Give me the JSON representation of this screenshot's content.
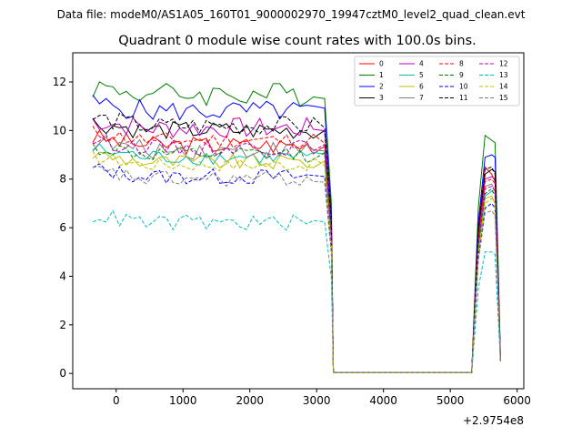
{
  "chart_data": {
    "type": "line",
    "suptitle": "Data file: modeM0/AS1A05_160T01_9000002970_19947cztM0_level2_quad_clean.evt",
    "title": "Quadrant 0 module wise count rates with 100.0s bins.",
    "xlabel": "",
    "ylabel": "",
    "x_offset_label": "+2.9754e8",
    "xlim": [
      -650,
      6100
    ],
    "ylim": [
      -0.63,
      13.2
    ],
    "x_ticks": [
      0,
      1000,
      2000,
      3000,
      4000,
      5000,
      6000
    ],
    "x_tick_labels": [
      "0",
      "1000",
      "2000",
      "3000",
      "4000",
      "5000",
      "6000"
    ],
    "y_ticks": [
      0,
      2,
      4,
      6,
      8,
      10,
      12
    ],
    "y_tick_labels": [
      "0",
      "2",
      "4",
      "6",
      "8",
      "10",
      "12"
    ],
    "legend_position": "top-right",
    "grid": false,
    "gap_range": [
      3220,
      5320
    ],
    "series": [
      {
        "name": "0",
        "color": "#ff0000",
        "dash": "solid",
        "base": 9.4,
        "amp": 0.35,
        "tail": [
          8.5,
          8.2,
          7.9,
          0.6
        ],
        "drop": 5.8
      },
      {
        "name": "1",
        "color": "#008000",
        "dash": "solid",
        "base": 11.5,
        "amp": 0.45,
        "tail": [
          9.8,
          9.6,
          9.5,
          0.8
        ],
        "drop": 7.0
      },
      {
        "name": "2",
        "color": "#0000ff",
        "dash": "solid",
        "base": 10.8,
        "amp": 0.4,
        "tail": [
          8.9,
          9.0,
          8.9,
          0.7
        ],
        "drop": 6.5
      },
      {
        "name": "3",
        "color": "#000000",
        "dash": "solid",
        "base": 10.0,
        "amp": 0.35,
        "tail": [
          8.2,
          8.4,
          8.3,
          0.6
        ],
        "drop": 6.0
      },
      {
        "name": "4",
        "color": "#bf00bf",
        "dash": "solid",
        "base": 10.1,
        "amp": 0.4,
        "tail": [
          8.0,
          8.1,
          8.0,
          0.6
        ],
        "drop": 6.1
      },
      {
        "name": "5",
        "color": "#00bfbf",
        "dash": "solid",
        "base": 8.9,
        "amp": 0.3,
        "tail": [
          7.3,
          7.5,
          7.4,
          0.5
        ],
        "drop": 5.4
      },
      {
        "name": "6",
        "color": "#bfbf00",
        "dash": "solid",
        "base": 8.7,
        "amp": 0.3,
        "tail": [
          7.2,
          7.3,
          7.0,
          0.5
        ],
        "drop": 5.3
      },
      {
        "name": "7",
        "color": "#808080",
        "dash": "solid",
        "base": 9.2,
        "amp": 0.35,
        "tail": [
          7.7,
          7.8,
          7.5,
          0.6
        ],
        "drop": 5.6
      },
      {
        "name": "8",
        "color": "#ff0000",
        "dash": "dashed",
        "base": 9.6,
        "amp": 0.3,
        "tail": [
          7.9,
          8.0,
          7.8,
          0.6
        ],
        "drop": 5.9
      },
      {
        "name": "9",
        "color": "#008000",
        "dash": "dashed",
        "base": 9.0,
        "amp": 0.3,
        "tail": [
          7.4,
          7.6,
          7.3,
          0.5
        ],
        "drop": 5.5
      },
      {
        "name": "10",
        "color": "#0000ff",
        "dash": "dashed",
        "base": 8.1,
        "amp": 0.3,
        "tail": [
          6.8,
          7.0,
          6.8,
          0.5
        ],
        "drop": 5.0
      },
      {
        "name": "11",
        "color": "#000000",
        "dash": "dashed",
        "base": 10.2,
        "amp": 0.35,
        "tail": [
          8.4,
          8.5,
          8.2,
          0.6
        ],
        "drop": 6.2
      },
      {
        "name": "12",
        "color": "#bf00bf",
        "dash": "dashed",
        "base": 9.3,
        "amp": 0.3,
        "tail": [
          7.6,
          7.7,
          7.5,
          0.6
        ],
        "drop": 5.7
      },
      {
        "name": "13",
        "color": "#00bfbf",
        "dash": "dashed",
        "base": 6.2,
        "amp": 0.3,
        "tail": [
          5.0,
          5.0,
          4.9,
          0.5
        ],
        "drop": 3.9
      },
      {
        "name": "14",
        "color": "#bfbf00",
        "dash": "dashed",
        "base": 8.6,
        "amp": 0.25,
        "tail": [
          7.0,
          7.2,
          7.0,
          0.5
        ],
        "drop": 5.2
      },
      {
        "name": "15",
        "color": "#808080",
        "dash": "dashed",
        "base": 8.0,
        "amp": 0.3,
        "tail": [
          6.6,
          6.7,
          6.5,
          0.5
        ],
        "drop": 4.9
      }
    ]
  }
}
